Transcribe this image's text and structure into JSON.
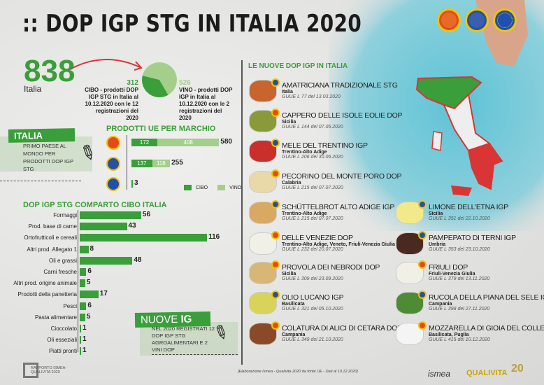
{
  "title": ":: DOP IGP STG IN ITALIA 2020",
  "colors": {
    "green": "#3a9e3a",
    "light_green": "#a3cf8b",
    "dop": "#e34a1c",
    "igp": "#2b4fa0",
    "stg": "#1f4fb0",
    "accent_red": "#d93535"
  },
  "logos": [
    "dop-logo",
    "igp-logo",
    "stg-logo"
  ],
  "summary": {
    "total": "838",
    "total_label": "Italia",
    "cibo_value": "312",
    "cibo_text": "CIBO - prodotti DOP IGP STG in Italia al 10.12.2020 con le 12 registrazioni del 2020",
    "vino_value": "526",
    "vino_text": "VINO - prodotti DOP IGP in Italia al 10.12.2020 con le 2 registrazioni del 2020"
  },
  "italia_box": {
    "badge": "ITALIA",
    "text": "PRIMO PAESE AL MONDO PER PRODOTTI DOP IGP STG"
  },
  "nuove_box": {
    "badge_a": "NUOVE ",
    "badge_b": "IG",
    "text": "NEL 2020 REGISTRATI 12 DOP IGP STG AGROALIMENTARI E 2 VINI DOP"
  },
  "chart_data": [
    {
      "type": "pie",
      "title": "",
      "categories": [
        "CIBO",
        "VINO"
      ],
      "values": [
        312,
        526
      ]
    },
    {
      "type": "bar",
      "orientation": "horizontal",
      "stacked": true,
      "title": "PRODOTTI UE PER MARCHIO",
      "categories": [
        "DOP",
        "IGP",
        "STG"
      ],
      "series": [
        {
          "name": "CIBO",
          "values": [
            172,
            137,
            3
          ]
        },
        {
          "name": "VINO",
          "values": [
            408,
            118,
            0
          ]
        }
      ],
      "totals": [
        "580",
        "255",
        "3"
      ],
      "legend": "bottom-right"
    },
    {
      "type": "bar",
      "orientation": "horizontal",
      "title": "DOP IGP STG COMPARTO CIBO ITALIA",
      "categories": [
        "Formaggi",
        "Prod. base di carne",
        "Ortofrutticoli e cereali",
        "Altri prod. Allegato 1",
        "Oli e grassi",
        "Carni fresche",
        "Altri prod. origine animale",
        "Prodotti della panetteria",
        "Pesci",
        "Pasta alimentare",
        "Cioccolato",
        "Oli esseziali",
        "Piatti pronti"
      ],
      "values": [
        56,
        43,
        116,
        8,
        48,
        6,
        5,
        17,
        6,
        5,
        1,
        1,
        1
      ]
    }
  ],
  "news_title": "LE NUOVE DOP IGP IN ITALIA",
  "products": [
    {
      "name": "AMATRICIANA TRADIZIONALE STG",
      "region": "Italia",
      "ref": "GUUE L 77 del 13.03.2020",
      "seal": "stg",
      "color": "#c8652e"
    },
    {
      "name": "CAPPERO DELLE ISOLE EOLIE DOP",
      "region": "Sicilia",
      "ref": "GUUE L 144 del 07.05.2020",
      "seal": "dop",
      "color": "#8a9a3a"
    },
    {
      "name": "MELE DEL TRENTINO IGP",
      "region": "Trentino-Alto Adige",
      "ref": "GUUE L 206 del 30.06.2020",
      "seal": "igp",
      "color": "#c9302c"
    },
    {
      "name": "PECORINO DEL MONTE PORO DOP",
      "region": "Calabria",
      "ref": "GUUE L 215 del 07.07.2020",
      "seal": "dop",
      "color": "#ead9a8"
    },
    {
      "name": "SCHÜTTELBROT ALTO ADIGE IGP",
      "region": "Trentino-Alto Adige",
      "ref": "GUUE L 215 del 07.07.2020",
      "seal": "igp",
      "color": "#d9a862"
    },
    {
      "name": "DELLE VENEZIE DOP",
      "region": "Trentino-Alto Adige, Veneto, Friuli-Venezia Giulia",
      "ref": "GUUE L 232 del 20.07.2020",
      "seal": "dop",
      "color": "#f1f0e6"
    },
    {
      "name": "PROVOLA DEI NEBRODI DOP",
      "region": "Sicilia",
      "ref": "GUUE L 309 del 23.09.2020",
      "seal": "dop",
      "color": "#d8b676"
    },
    {
      "name": "OLIO LUCANO IGP",
      "region": "Basilicata",
      "ref": "GUUE L 321 del 05.10.2020",
      "seal": "igp",
      "color": "#d9d35a"
    },
    {
      "name": "COLATURA DI ALICI DI CETARA DOP",
      "region": "Campania",
      "ref": "GUUE L 349 del 21.10.2020",
      "seal": "dop",
      "color": "#8a4a2a"
    },
    {
      "name": "LIMONE DELL'ETNA IGP",
      "region": "Sicilia",
      "ref": "GUUE L 351 del 22.10.2020",
      "seal": "igp",
      "color": "#f2ea8a"
    },
    {
      "name": "PAMPEPATO DI TERNI IGP",
      "region": "Umbria",
      "ref": "GUUE L 353 del 23.10.2020",
      "seal": "igp",
      "color": "#4a2a20"
    },
    {
      "name": "FRIULI DOP",
      "region": "Friuli-Venezia Giulia",
      "ref": "GUUE L 379 del 13.11.2020",
      "seal": "dop",
      "color": "#f1f0e6"
    },
    {
      "name": "RUCOLA DELLA PIANA DEL SELE IGP",
      "region": "Campania",
      "ref": "GUUE L 398 del 27.11.2020",
      "seal": "igp",
      "color": "#4f8a35"
    },
    {
      "name": "MOZZARELLA DI GIOIA DEL COLLE DOP",
      "region": "Basilicata, Puglia",
      "ref": "GUUE L 415 del 10.12.2020",
      "seal": "dop",
      "color": "#f4f4f4"
    }
  ],
  "footer": {
    "source": "[Elaborazione Ismea - Qualivita 2020 da fonte UE - Dati al 10.12.2020]",
    "report": "RAPPORTO ISMEA-QUALIVITA 2020",
    "ismea": "ismea",
    "qualivita": "QUALIVITA",
    "anni": "20"
  }
}
